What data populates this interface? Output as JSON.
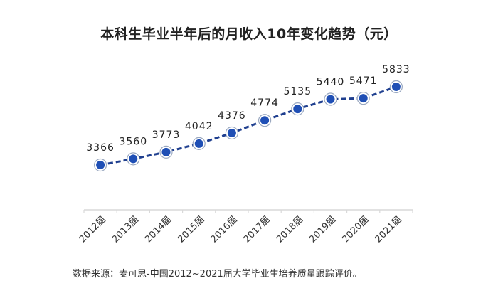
{
  "title": "本科生毕业半年后的月收入10年变化趋势（元）",
  "source": "数据来源：麦可思-中国2012~2021届大学毕业生培养质量跟踪评价。",
  "colors": {
    "line": "#1f3f8f",
    "marker_fill": "#1f4fb5",
    "marker_ring": "#9aa8c0",
    "axis": "#d9d9d9",
    "text": "#333333"
  },
  "chart_data": {
    "type": "line",
    "title": "本科生毕业半年后的月收入10年变化趋势（元）",
    "xlabel": "",
    "ylabel": "",
    "categories": [
      "2012届",
      "2013届",
      "2014届",
      "2015届",
      "2016届",
      "2017届",
      "2018届",
      "2019届",
      "2020届",
      "2021届"
    ],
    "series": [
      {
        "name": "月收入",
        "values": [
          3366,
          3560,
          3773,
          4042,
          4376,
          4774,
          5135,
          5440,
          5471,
          5833
        ]
      }
    ],
    "data_labels": true,
    "line_style": "dashed",
    "grid": false,
    "legend": "none",
    "y_axis_visible": false
  }
}
